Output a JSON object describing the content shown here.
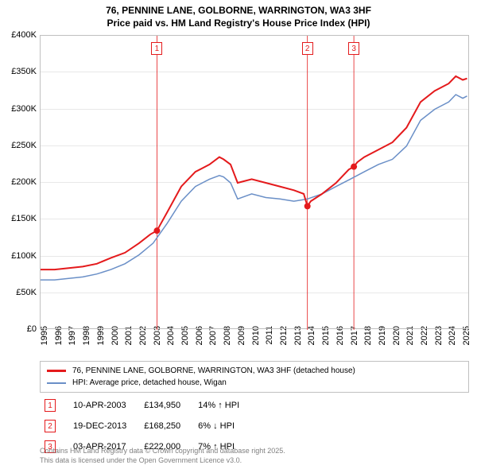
{
  "title_line1": "76, PENNINE LANE, GOLBORNE, WARRINGTON, WA3 3HF",
  "title_line2": "Price paid vs. HM Land Registry's House Price Index (HPI)",
  "chart": {
    "type": "line",
    "background_color": "#ffffff",
    "grid_color": "#e8e8e8",
    "border_color": "#c0c0c0",
    "x_range": [
      1995,
      2025.5
    ],
    "y_range": [
      0,
      400000
    ],
    "y_ticks": [
      0,
      50000,
      100000,
      150000,
      200000,
      250000,
      300000,
      350000,
      400000
    ],
    "y_tick_labels": [
      "£0",
      "£50K",
      "£100K",
      "£150K",
      "£200K",
      "£250K",
      "£300K",
      "£350K",
      "£400K"
    ],
    "x_ticks": [
      1995,
      1996,
      1997,
      1998,
      1999,
      2000,
      2001,
      2002,
      2003,
      2004,
      2005,
      2006,
      2007,
      2008,
      2009,
      2010,
      2011,
      2012,
      2013,
      2014,
      2015,
      2016,
      2017,
      2018,
      2019,
      2020,
      2021,
      2022,
      2023,
      2024,
      2025
    ],
    "series": [
      {
        "name": "property_price",
        "label": "76, PENNINE LANE, GOLBORNE, WARRINGTON, WA3 3HF (detached house)",
        "color": "#e41a1c",
        "line_width": 2,
        "data": [
          [
            1995,
            82000
          ],
          [
            1996,
            82000
          ],
          [
            1997,
            84000
          ],
          [
            1998,
            86000
          ],
          [
            1999,
            90000
          ],
          [
            2000,
            98000
          ],
          [
            2001,
            105000
          ],
          [
            2002,
            118000
          ],
          [
            2002.8,
            130000
          ],
          [
            2003.27,
            134950
          ],
          [
            2004,
            160000
          ],
          [
            2005,
            195000
          ],
          [
            2006,
            215000
          ],
          [
            2007,
            225000
          ],
          [
            2007.7,
            235000
          ],
          [
            2008,
            232000
          ],
          [
            2008.5,
            225000
          ],
          [
            2009,
            200000
          ],
          [
            2010,
            205000
          ],
          [
            2011,
            200000
          ],
          [
            2012,
            195000
          ],
          [
            2013,
            190000
          ],
          [
            2013.7,
            185000
          ],
          [
            2013.96,
            168250
          ],
          [
            2014.2,
            175000
          ],
          [
            2015,
            185000
          ],
          [
            2016,
            200000
          ],
          [
            2016.9,
            218000
          ],
          [
            2017.26,
            222000
          ],
          [
            2017.5,
            228000
          ],
          [
            2018,
            235000
          ],
          [
            2019,
            245000
          ],
          [
            2020,
            255000
          ],
          [
            2021,
            275000
          ],
          [
            2022,
            310000
          ],
          [
            2023,
            325000
          ],
          [
            2024,
            335000
          ],
          [
            2024.5,
            345000
          ],
          [
            2025,
            340000
          ],
          [
            2025.3,
            342000
          ]
        ]
      },
      {
        "name": "hpi_wigan",
        "label": "HPI: Average price, detached house, Wigan",
        "color": "#6a8fc7",
        "line_width": 1.5,
        "data": [
          [
            1995,
            68000
          ],
          [
            1996,
            68000
          ],
          [
            1997,
            70000
          ],
          [
            1998,
            72000
          ],
          [
            1999,
            76000
          ],
          [
            2000,
            82000
          ],
          [
            2001,
            90000
          ],
          [
            2002,
            102000
          ],
          [
            2003,
            118000
          ],
          [
            2004,
            145000
          ],
          [
            2005,
            175000
          ],
          [
            2006,
            195000
          ],
          [
            2007,
            205000
          ],
          [
            2007.7,
            210000
          ],
          [
            2008,
            208000
          ],
          [
            2008.5,
            200000
          ],
          [
            2009,
            178000
          ],
          [
            2010,
            185000
          ],
          [
            2011,
            180000
          ],
          [
            2012,
            178000
          ],
          [
            2013,
            175000
          ],
          [
            2013.96,
            178000
          ],
          [
            2015,
            185000
          ],
          [
            2016,
            195000
          ],
          [
            2017,
            205000
          ],
          [
            2018,
            215000
          ],
          [
            2019,
            225000
          ],
          [
            2020,
            232000
          ],
          [
            2021,
            250000
          ],
          [
            2022,
            285000
          ],
          [
            2023,
            300000
          ],
          [
            2024,
            310000
          ],
          [
            2024.5,
            320000
          ],
          [
            2025,
            315000
          ],
          [
            2025.3,
            318000
          ]
        ]
      }
    ],
    "vlines": [
      {
        "x": 2003.27,
        "color": "#e41a1c"
      },
      {
        "x": 2013.96,
        "color": "#e41a1c"
      },
      {
        "x": 2017.26,
        "color": "#e41a1c"
      }
    ],
    "points": [
      {
        "x": 2003.27,
        "y": 134950,
        "color": "#e41a1c"
      },
      {
        "x": 2013.96,
        "y": 168250,
        "color": "#e41a1c"
      },
      {
        "x": 2017.26,
        "y": 222000,
        "color": "#e41a1c"
      }
    ],
    "markers": [
      {
        "num": "1",
        "x": 2003.27
      },
      {
        "num": "2",
        "x": 2013.96
      },
      {
        "num": "3",
        "x": 2017.26
      }
    ]
  },
  "legend": {
    "items": [
      {
        "color": "#e41a1c",
        "label": "76, PENNINE LANE, GOLBORNE, WARRINGTON, WA3 3HF (detached house)"
      },
      {
        "color": "#6a8fc7",
        "label": "HPI: Average price, detached house, Wigan"
      }
    ]
  },
  "transactions": [
    {
      "num": "1",
      "date": "10-APR-2003",
      "price": "£134,950",
      "delta": "14% ↑ HPI"
    },
    {
      "num": "2",
      "date": "19-DEC-2013",
      "price": "£168,250",
      "delta": "6% ↓ HPI"
    },
    {
      "num": "3",
      "date": "03-APR-2017",
      "price": "£222,000",
      "delta": "7% ↑ HPI"
    }
  ],
  "license_line1": "Contains HM Land Registry data © Crown copyright and database right 2025.",
  "license_line2": "This data is licensed under the Open Government Licence v3.0."
}
